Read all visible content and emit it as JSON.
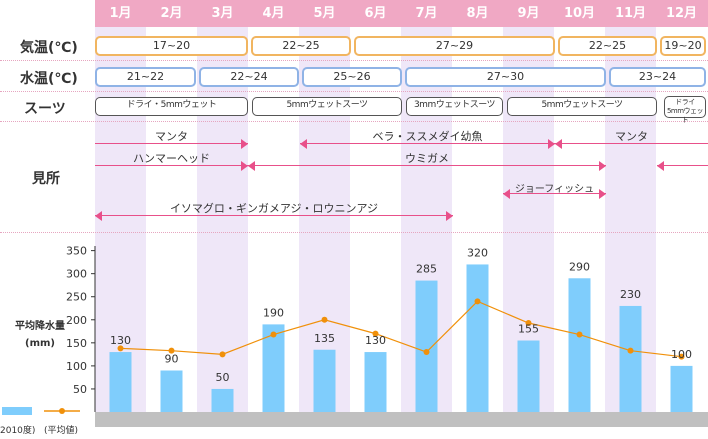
{
  "months": [
    "1月",
    "2月",
    "3月",
    "4月",
    "5月",
    "6月",
    "7月",
    "8月",
    "9月",
    "10月",
    "11月",
    "12月"
  ],
  "row_labels": {
    "air_temp": "気温(℃)",
    "water_temp": "水温(℃)",
    "suit": "スーツ",
    "highlights": "見所",
    "rainfall": "平均降水量\n(mm)"
  },
  "air_temp": [
    "17~20",
    "22~25",
    "27~29",
    "22~25",
    "19~20"
  ],
  "water_temp": [
    "21~22",
    "22~24",
    "25~26",
    "27~30",
    "23~24"
  ],
  "suits": [
    "ドライ・5mmウェット",
    "5mmウェットスーツ",
    "3mmウェットスーツ",
    "5mmウェットスーツ",
    "ドライ\n5mmウェット"
  ],
  "highlights": {
    "manta_1": "マンタ",
    "wrasse": "ベラ・ススメダイ幼魚",
    "manta_2": "マンタ",
    "hammerhead": "ハンマーヘッド",
    "turtle": "ウミガメ",
    "jawfish": "ジョーフィッシュ",
    "fish_group": "イソマグロ・ギンガメアジ・ロウニンアジ"
  },
  "legend": {
    "bar_label": "2010度)",
    "line_label": "(平均値)"
  },
  "colors": {
    "header": "#f0a8c4",
    "stripe": "#efe7f8",
    "bar": "#7fcdfc",
    "line": "#f0900a",
    "arrow": "#e8508a",
    "axis_base": "#c0c0c0"
  },
  "chart_data": {
    "type": "bar",
    "title": "平均降水量(mm)",
    "categories": [
      "1月",
      "2月",
      "3月",
      "4月",
      "5月",
      "6月",
      "7月",
      "8月",
      "9月",
      "10月",
      "11月",
      "12月"
    ],
    "series": [
      {
        "name": "2010度)",
        "type": "bar",
        "values": [
          130,
          90,
          50,
          190,
          135,
          130,
          285,
          320,
          155,
          290,
          230,
          100
        ]
      },
      {
        "name": "(平均値)",
        "type": "line",
        "values": [
          138,
          133,
          125,
          168,
          200,
          170,
          130,
          240,
          193,
          168,
          133,
          120
        ]
      }
    ],
    "y_ticks": [
      50,
      100,
      150,
      200,
      250,
      300,
      350
    ],
    "ylim": [
      0,
      360
    ],
    "ylabel": "平均降水量(mm)"
  }
}
